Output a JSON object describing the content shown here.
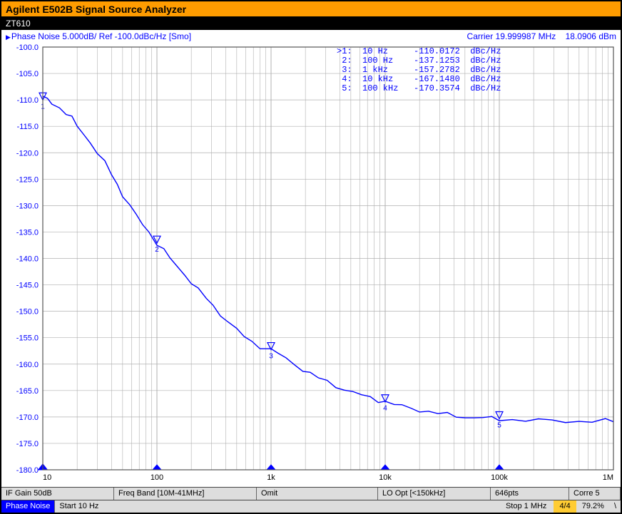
{
  "titlebar": "Agilent E502B Signal Source Analyzer",
  "subtitle": "ZT610",
  "config": {
    "left": "Phase Noise 5.000dB/ Ref -100.0dBc/Hz [Smo]",
    "carrier": "Carrier 19.999987 MHz    18.0906 dBm"
  },
  "markers_text": ">1:  10 Hz     -110.0172  dBc/Hz\n 2:  100 Hz    -137.1253  dBc/Hz\n 3:  1 kHz     -157.2782  dBc/Hz\n 4:  10 kHz    -167.1480  dBc/Hz\n 5:  100 kHz   -170.3574  dBc/Hz",
  "chart": {
    "type": "line",
    "xscale": "log",
    "xlim": [
      10,
      1000000
    ],
    "ylim": [
      -180,
      -100
    ],
    "ytick_step": 5,
    "decades": [
      10,
      100,
      1000,
      10000,
      100000,
      1000000
    ],
    "xlabels": [
      "10",
      "100",
      "1k",
      "10k",
      "100k",
      "1M"
    ],
    "bg": "#ffffff",
    "grid_color": "#b0b0b0",
    "line_color": "#0000ff",
    "line_width": 1.4,
    "axis_font_size": 11,
    "trace": [
      [
        10,
        -109.5
      ],
      [
        11,
        -110.0
      ],
      [
        12,
        -110.5
      ],
      [
        14,
        -111.5
      ],
      [
        16,
        -112.5
      ],
      [
        18,
        -113.5
      ],
      [
        20,
        -115.0
      ],
      [
        23,
        -116.5
      ],
      [
        26,
        -118.0
      ],
      [
        30,
        -120.0
      ],
      [
        35,
        -122.0
      ],
      [
        40,
        -124.0
      ],
      [
        45,
        -126.0
      ],
      [
        50,
        -128.0
      ],
      [
        58,
        -130.0
      ],
      [
        66,
        -132.0
      ],
      [
        75,
        -133.5
      ],
      [
        85,
        -135.0
      ],
      [
        100,
        -137.1
      ],
      [
        115,
        -138.5
      ],
      [
        130,
        -140.0
      ],
      [
        150,
        -141.5
      ],
      [
        175,
        -143.0
      ],
      [
        200,
        -144.5
      ],
      [
        230,
        -146.0
      ],
      [
        270,
        -147.5
      ],
      [
        310,
        -149.0
      ],
      [
        360,
        -150.5
      ],
      [
        420,
        -152.0
      ],
      [
        500,
        -153.5
      ],
      [
        580,
        -154.8
      ],
      [
        680,
        -155.8
      ],
      [
        800,
        -156.6
      ],
      [
        1000,
        -157.3
      ],
      [
        1150,
        -158.0
      ],
      [
        1350,
        -159.0
      ],
      [
        1600,
        -160.0
      ],
      [
        1900,
        -161.0
      ],
      [
        2200,
        -161.8
      ],
      [
        2600,
        -162.6
      ],
      [
        3100,
        -163.4
      ],
      [
        3700,
        -164.1
      ],
      [
        4400,
        -164.8
      ],
      [
        5200,
        -165.3
      ],
      [
        6200,
        -165.9
      ],
      [
        7400,
        -166.4
      ],
      [
        8700,
        -166.8
      ],
      [
        10000,
        -167.1
      ],
      [
        12000,
        -167.6
      ],
      [
        14000,
        -168.0
      ],
      [
        17000,
        -168.4
      ],
      [
        20000,
        -168.7
      ],
      [
        24000,
        -169.0
      ],
      [
        29000,
        -169.3
      ],
      [
        35000,
        -169.6
      ],
      [
        42000,
        -169.8
      ],
      [
        50000,
        -170.0
      ],
      [
        60000,
        -170.1
      ],
      [
        72000,
        -170.2
      ],
      [
        86000,
        -170.3
      ],
      [
        100000,
        -170.35
      ],
      [
        130000,
        -170.5
      ],
      [
        170000,
        -170.6
      ],
      [
        220000,
        -170.7
      ],
      [
        290000,
        -170.7
      ],
      [
        380000,
        -170.8
      ],
      [
        500000,
        -170.8
      ],
      [
        650000,
        -170.8
      ],
      [
        850000,
        -170.8
      ],
      [
        1000000,
        -170.8
      ]
    ],
    "markers": [
      {
        "n": 1,
        "x": 10,
        "y": -110.0172
      },
      {
        "n": 2,
        "x": 100,
        "y": -137.1253
      },
      {
        "n": 3,
        "x": 1000,
        "y": -157.2782
      },
      {
        "n": 4,
        "x": 10000,
        "y": -167.148
      },
      {
        "n": 5,
        "x": 100000,
        "y": -170.3574
      }
    ],
    "baseline_marker_color": "#0000ff"
  },
  "status1": {
    "ifgain": "IF Gain 50dB",
    "freqband": "Freq Band [10M-41MHz]",
    "omit": "Omit",
    "loopt": "LO Opt [<150kHz]",
    "pts": "646pts",
    "corre": "Corre 5"
  },
  "status2": {
    "pn": "Phase Noise",
    "start": "Start 10 Hz",
    "stop": "Stop 1 MHz",
    "count": "4/4",
    "pct": "79.2%",
    "tail": "\\"
  }
}
